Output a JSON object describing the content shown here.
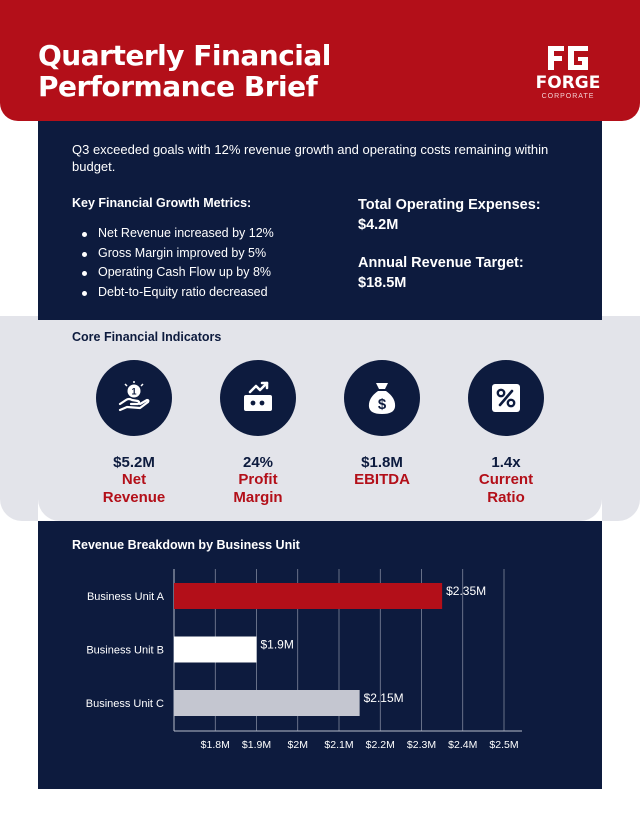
{
  "header": {
    "title": "Quarterly Financial Performance Brief",
    "logo_name": "FORGE",
    "logo_sub": "CORPORATE"
  },
  "summary": "Q3 exceeded goals with 12% revenue growth and operating costs remaining within budget.",
  "metrics": {
    "heading": "Key Financial Growth Metrics:",
    "items": [
      "Net Revenue increased by 12%",
      "Gross Margin improved by 5%",
      "Operating Cash Flow up by 8%",
      "Debt-to-Equity ratio decreased"
    ]
  },
  "stats": {
    "opex_label": "Total Operating Expenses:",
    "opex_value": "$4.2M",
    "target_label": "Annual Revenue Target:",
    "target_value": "$18.5M"
  },
  "indicators": {
    "heading": "Core Financial Indicators",
    "items": [
      {
        "icon": "money-hand-icon",
        "value": "$5.2M",
        "label_line1": "Net",
        "label_line2": "Revenue"
      },
      {
        "icon": "growth-wallet-icon",
        "value": "24%",
        "label_line1": "Profit",
        "label_line2": "Margin"
      },
      {
        "icon": "money-bag-icon",
        "value": "$1.8M",
        "label_line1": "EBITDA",
        "label_line2": ""
      },
      {
        "icon": "percent-icon",
        "value": "1.4x",
        "label_line1": "Current",
        "label_line2": "Ratio"
      }
    ]
  },
  "colors": {
    "brand_red": "#b30f19",
    "navy": "#0d1b3e",
    "light_gray": "#e3e4ea",
    "bar_white": "#ffffff",
    "bar_gray": "#c4c6d0"
  },
  "chart_data": {
    "type": "bar",
    "orientation": "horizontal",
    "title": "Revenue Breakdown by Business Unit",
    "categories": [
      "Business Unit A",
      "Business Unit B",
      "Business Unit C"
    ],
    "values": [
      2.35,
      1.9,
      2.15
    ],
    "data_labels": [
      "$2.35M",
      "$1.9M",
      "$2.15M"
    ],
    "bar_colors": [
      "#b30f19",
      "#ffffff",
      "#c4c6d0"
    ],
    "xlim": [
      1.7,
      2.5
    ],
    "x_ticks": [
      1.8,
      1.9,
      2.0,
      2.1,
      2.2,
      2.3,
      2.4,
      2.5
    ],
    "x_tick_labels": [
      "$1.8M",
      "$1.9M",
      "$2M",
      "$2.1M",
      "$2.2M",
      "$2.3M",
      "$2.4M",
      "$2.5M"
    ],
    "xlabel": "",
    "ylabel": "",
    "grid": true
  }
}
